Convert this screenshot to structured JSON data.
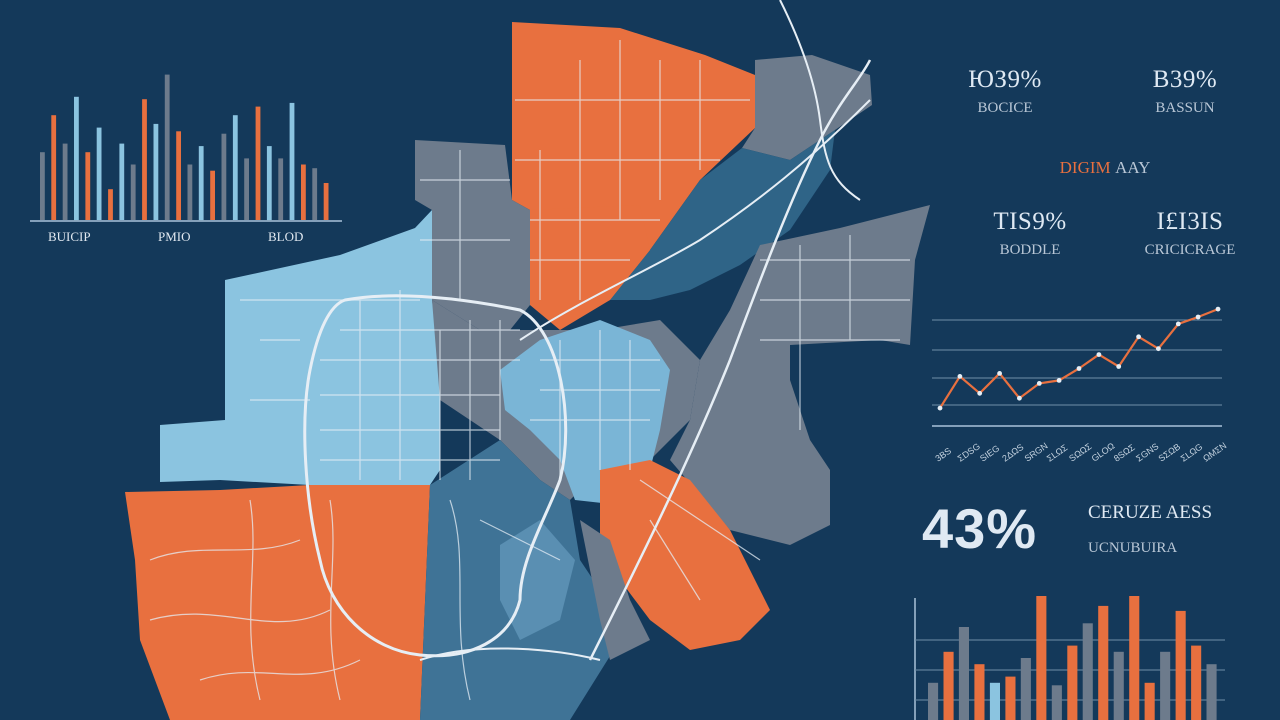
{
  "colors": {
    "background": "#14395a",
    "orange": "#e8703f",
    "light_blue": "#8bc4e0",
    "mid_blue": "#3f7396",
    "gray": "#6d7b8c",
    "line": "#e6eef5"
  },
  "top_left_chart": {
    "labels": [
      "BUICIP",
      "PMIO",
      "BLOD"
    ],
    "bars": [
      {
        "c": "gray",
        "v": 0.55
      },
      {
        "c": "orange",
        "v": 0.85
      },
      {
        "c": "gray",
        "v": 0.62
      },
      {
        "c": "light_blue",
        "v": 1.0
      },
      {
        "c": "orange",
        "v": 0.55
      },
      {
        "c": "light_blue",
        "v": 0.75
      },
      {
        "c": "orange",
        "v": 0.25
      },
      {
        "c": "light_blue",
        "v": 0.62
      },
      {
        "c": "gray",
        "v": 0.45
      },
      {
        "c": "orange",
        "v": 0.98
      },
      {
        "c": "light_blue",
        "v": 0.78
      },
      {
        "c": "gray",
        "v": 1.18
      },
      {
        "c": "orange",
        "v": 0.72
      },
      {
        "c": "gray",
        "v": 0.45
      },
      {
        "c": "light_blue",
        "v": 0.6
      },
      {
        "c": "orange",
        "v": 0.4
      },
      {
        "c": "gray",
        "v": 0.7
      },
      {
        "c": "light_blue",
        "v": 0.85
      },
      {
        "c": "gray",
        "v": 0.5
      },
      {
        "c": "orange",
        "v": 0.92
      },
      {
        "c": "light_blue",
        "v": 0.6
      },
      {
        "c": "gray",
        "v": 0.5
      },
      {
        "c": "light_blue",
        "v": 0.95
      },
      {
        "c": "orange",
        "v": 0.45
      },
      {
        "c": "gray",
        "v": 0.42
      },
      {
        "c": "orange",
        "v": 0.3
      }
    ]
  },
  "stats": [
    {
      "value": "ЮЗ9%",
      "label": "BOCICE"
    },
    {
      "value": "B39%",
      "label": "BASSUN"
    },
    {
      "value": "TIS9%",
      "label": "BODDLE"
    },
    {
      "value": "I£I3IS",
      "label": "CRICICRAGE"
    }
  ],
  "mid_heading": {
    "left": "DIGIM",
    "right": "AAY"
  },
  "line_chart": {
    "values": [
      0.1,
      0.42,
      0.25,
      0.45,
      0.2,
      0.35,
      0.38,
      0.5,
      0.64,
      0.52,
      0.82,
      0.7,
      0.95,
      1.02,
      1.1
    ],
    "tick_labels": [
      "3BS",
      "ΣDSG",
      "SIEG",
      "2ΔΩS",
      "SRGN",
      "ΣLΩΣ",
      "SΩΩΣ",
      "GLOΩ",
      "8SΩΣ",
      "ΣGNS",
      "SΣΩB",
      "ΣLΩG",
      "ΩMΣN"
    ]
  },
  "headline": {
    "value": "43%",
    "line1": "CERUZE AESS",
    "line2": "UCNUBUIRA"
  },
  "bottom_chart": {
    "bars": [
      {
        "c": "gray",
        "v": 0.3
      },
      {
        "c": "orange",
        "v": 0.55
      },
      {
        "c": "gray",
        "v": 0.75
      },
      {
        "c": "orange",
        "v": 0.45
      },
      {
        "c": "light_blue",
        "v": 0.3
      },
      {
        "c": "orange",
        "v": 0.35
      },
      {
        "c": "gray",
        "v": 0.5
      },
      {
        "c": "orange",
        "v": 1.0
      },
      {
        "c": "gray",
        "v": 0.28
      },
      {
        "c": "orange",
        "v": 0.6
      },
      {
        "c": "gray",
        "v": 0.78
      },
      {
        "c": "orange",
        "v": 0.92
      },
      {
        "c": "gray",
        "v": 0.55
      },
      {
        "c": "orange",
        "v": 1.0
      },
      {
        "c": "orange",
        "v": 0.3
      },
      {
        "c": "gray",
        "v": 0.55
      },
      {
        "c": "orange",
        "v": 0.88
      },
      {
        "c": "orange",
        "v": 0.6
      },
      {
        "c": "gray",
        "v": 0.45
      }
    ]
  }
}
